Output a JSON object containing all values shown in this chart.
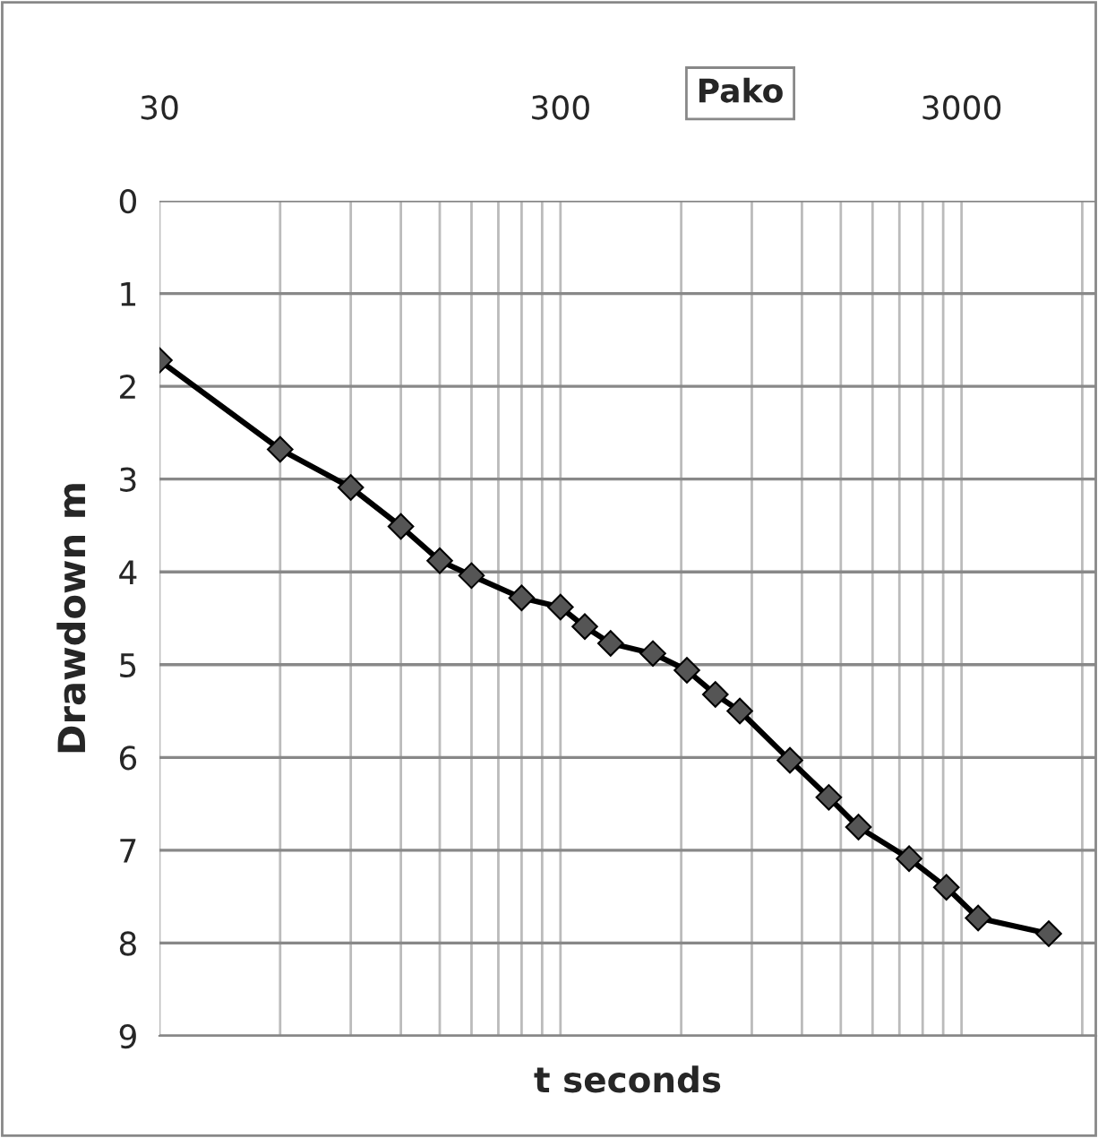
{
  "chart_data": {
    "type": "line",
    "title": "Pako",
    "xlabel": "t seconds",
    "ylabel": "Drawdown m",
    "x": [
      30,
      60,
      90,
      120,
      150,
      180,
      240,
      300,
      345,
      400,
      510,
      620,
      730,
      840,
      1120,
      1400,
      1660,
      2220,
      2750,
      3300,
      4950
    ],
    "series": [
      {
        "color": "#000000",
        "values": [
          1.72,
          2.68,
          3.09,
          3.51,
          3.88,
          4.04,
          4.28,
          4.38,
          4.59,
          4.77,
          4.88,
          5.06,
          5.32,
          5.5,
          6.03,
          6.43,
          6.75,
          7.09,
          7.4,
          7.73,
          7.9
        ]
      }
    ],
    "log": "x",
    "xlim": [
      30,
      6500
    ],
    "ylim": [
      9,
      0
    ],
    "xticks": [
      30,
      {
        "value": 60,
        "label": null
      },
      {
        "value": 90,
        "label": null
      },
      {
        "value": 120,
        "label": null
      },
      {
        "value": 150,
        "label": null
      },
      {
        "value": 180,
        "label": null
      },
      {
        "value": 210,
        "label": null
      },
      {
        "value": 240,
        "label": null
      },
      {
        "value": 270,
        "label": null
      },
      300,
      {
        "value": 600,
        "label": null
      },
      {
        "value": 900,
        "label": null
      },
      {
        "value": 1200,
        "label": null
      },
      {
        "value": 1500,
        "label": null
      },
      {
        "value": 1800,
        "label": null
      },
      {
        "value": 2100,
        "label": null
      },
      {
        "value": 2400,
        "label": null
      },
      {
        "value": 2700,
        "label": null
      },
      3000,
      {
        "value": 6000,
        "label": null
      }
    ],
    "yticks": [
      0,
      1,
      2,
      3,
      4,
      5,
      6,
      7,
      8,
      9
    ],
    "grid": true,
    "marker": "diamond",
    "line_style": "solid",
    "legend": false
  }
}
